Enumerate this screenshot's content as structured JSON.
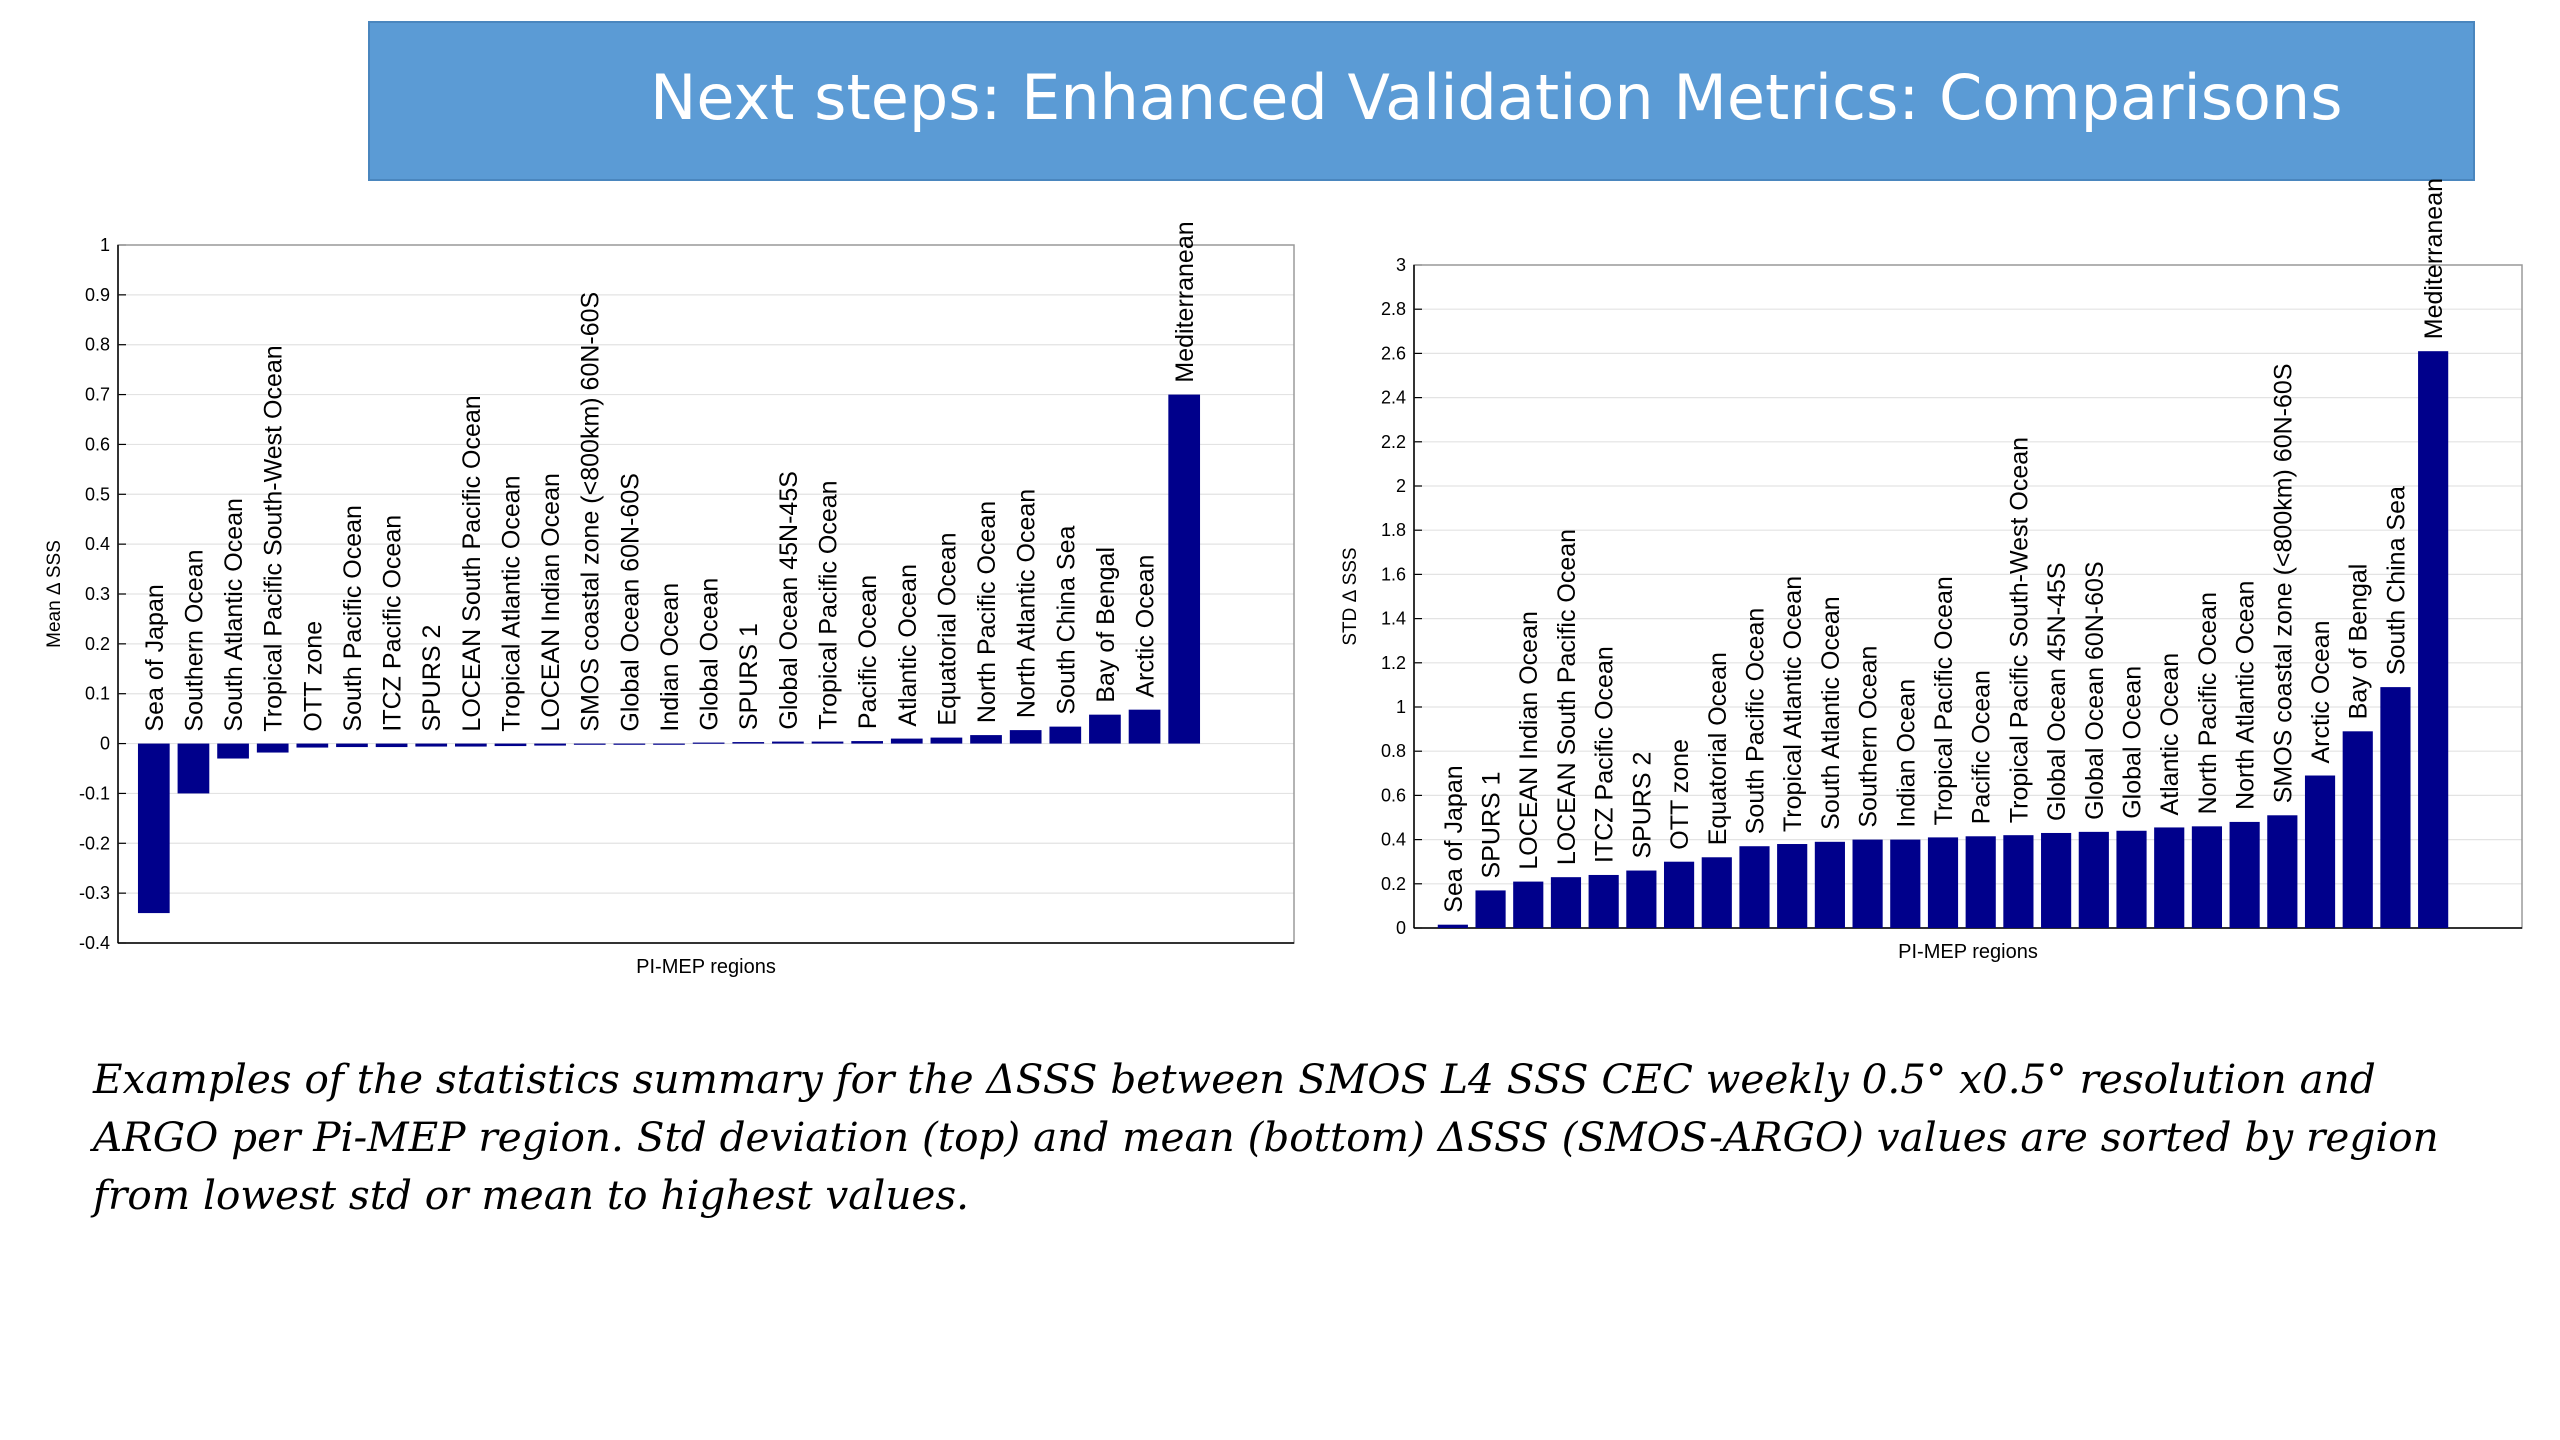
{
  "title": "Next steps: Enhanced Validation Metrics: Comparisons",
  "caption": "Examples of the statistics summary for the ΔSSS between SMOS L4 SSS CEC weekly 0.5° x0.5° resolution and ARGO per Pi-MEP region. Std deviation (top) and mean (bottom) ΔSSS (SMOS-ARGO) values are sorted by region from lowest std or mean to highest values.",
  "colors": {
    "banner": "#5b9bd5",
    "bar": "#00008b",
    "grid": "#e3e3e3",
    "axis": "#000000"
  },
  "chart_data": [
    {
      "type": "bar",
      "xlabel": "PI-MEP regions",
      "ylabel": "Mean Δ SSS",
      "ylim": [
        -0.4,
        1
      ],
      "yticks": [
        -0.4,
        -0.3,
        -0.2,
        -0.1,
        0,
        0.1,
        0.2,
        0.3,
        0.4,
        0.5,
        0.6,
        0.7,
        0.8,
        0.9,
        1
      ],
      "grid": true,
      "categories": [
        "Sea of Japan",
        "Southern Ocean",
        "South Atlantic Ocean",
        "Tropical Pacific South-West Ocean",
        "OTT zone",
        "South Pacific Ocean",
        "ITCZ Pacific Ocean",
        "SPURS 2",
        "LOCEAN South Pacific Ocean",
        "Tropical Atlantic Ocean",
        "LOCEAN Indian Ocean",
        "SMOS coastal zone (<800km) 60N-60S",
        "Global Ocean 60N-60S",
        "Indian Ocean",
        "Global Ocean",
        "SPURS 1",
        "Global Ocean 45N-45S",
        "Tropical Pacific Ocean",
        "Pacific Ocean",
        "Atlantic Ocean",
        "Equatorial Ocean",
        "North Pacific Ocean",
        "North Atlantic Ocean",
        "South China Sea",
        "Bay of Bengal",
        "Arctic Ocean",
        "Mediterranean"
      ],
      "values": [
        -0.34,
        -0.1,
        -0.03,
        -0.018,
        -0.008,
        -0.007,
        -0.007,
        -0.006,
        -0.006,
        -0.005,
        -0.004,
        -0.002,
        -0.002,
        -0.001,
        0.002,
        0.003,
        0.004,
        0.004,
        0.005,
        0.01,
        0.012,
        0.017,
        0.027,
        0.034,
        0.058,
        0.068,
        0.7
      ]
    },
    {
      "type": "bar",
      "xlabel": "PI-MEP regions",
      "ylabel": "STD Δ SSS",
      "ylim": [
        0,
        3
      ],
      "yticks": [
        0,
        0.2,
        0.4,
        0.6,
        0.8,
        1,
        1.2,
        1.4,
        1.6,
        1.8,
        2,
        2.2,
        2.4,
        2.6,
        2.8,
        3
      ],
      "grid": true,
      "categories": [
        "Sea of Japan",
        "SPURS 1",
        "LOCEAN Indian Ocean",
        "LOCEAN South Pacific Ocean",
        "ITCZ Pacific Ocean",
        "SPURS 2",
        "OTT zone",
        "Equatorial Ocean",
        "South Pacific Ocean",
        "Tropical Atlantic Ocean",
        "South Atlantic Ocean",
        "Southern Ocean",
        "Indian Ocean",
        "Tropical Pacific Ocean",
        "Pacific Ocean",
        "Tropical Pacific South-West Ocean",
        "Global Ocean 45N-45S",
        "Global Ocean 60N-60S",
        "Global Ocean",
        "Atlantic Ocean",
        "North Pacific Ocean",
        "North Atlantic Ocean",
        "SMOS coastal zone (<800km) 60N-60S",
        "Arctic Ocean",
        "Bay of Bengal",
        "South China Sea",
        "Mediterranean"
      ],
      "values": [
        0.015,
        0.17,
        0.21,
        0.23,
        0.24,
        0.26,
        0.3,
        0.32,
        0.37,
        0.38,
        0.39,
        0.4,
        0.4,
        0.41,
        0.415,
        0.42,
        0.43,
        0.435,
        0.44,
        0.455,
        0.46,
        0.48,
        0.51,
        0.69,
        0.89,
        1.09,
        2.61
      ]
    }
  ]
}
